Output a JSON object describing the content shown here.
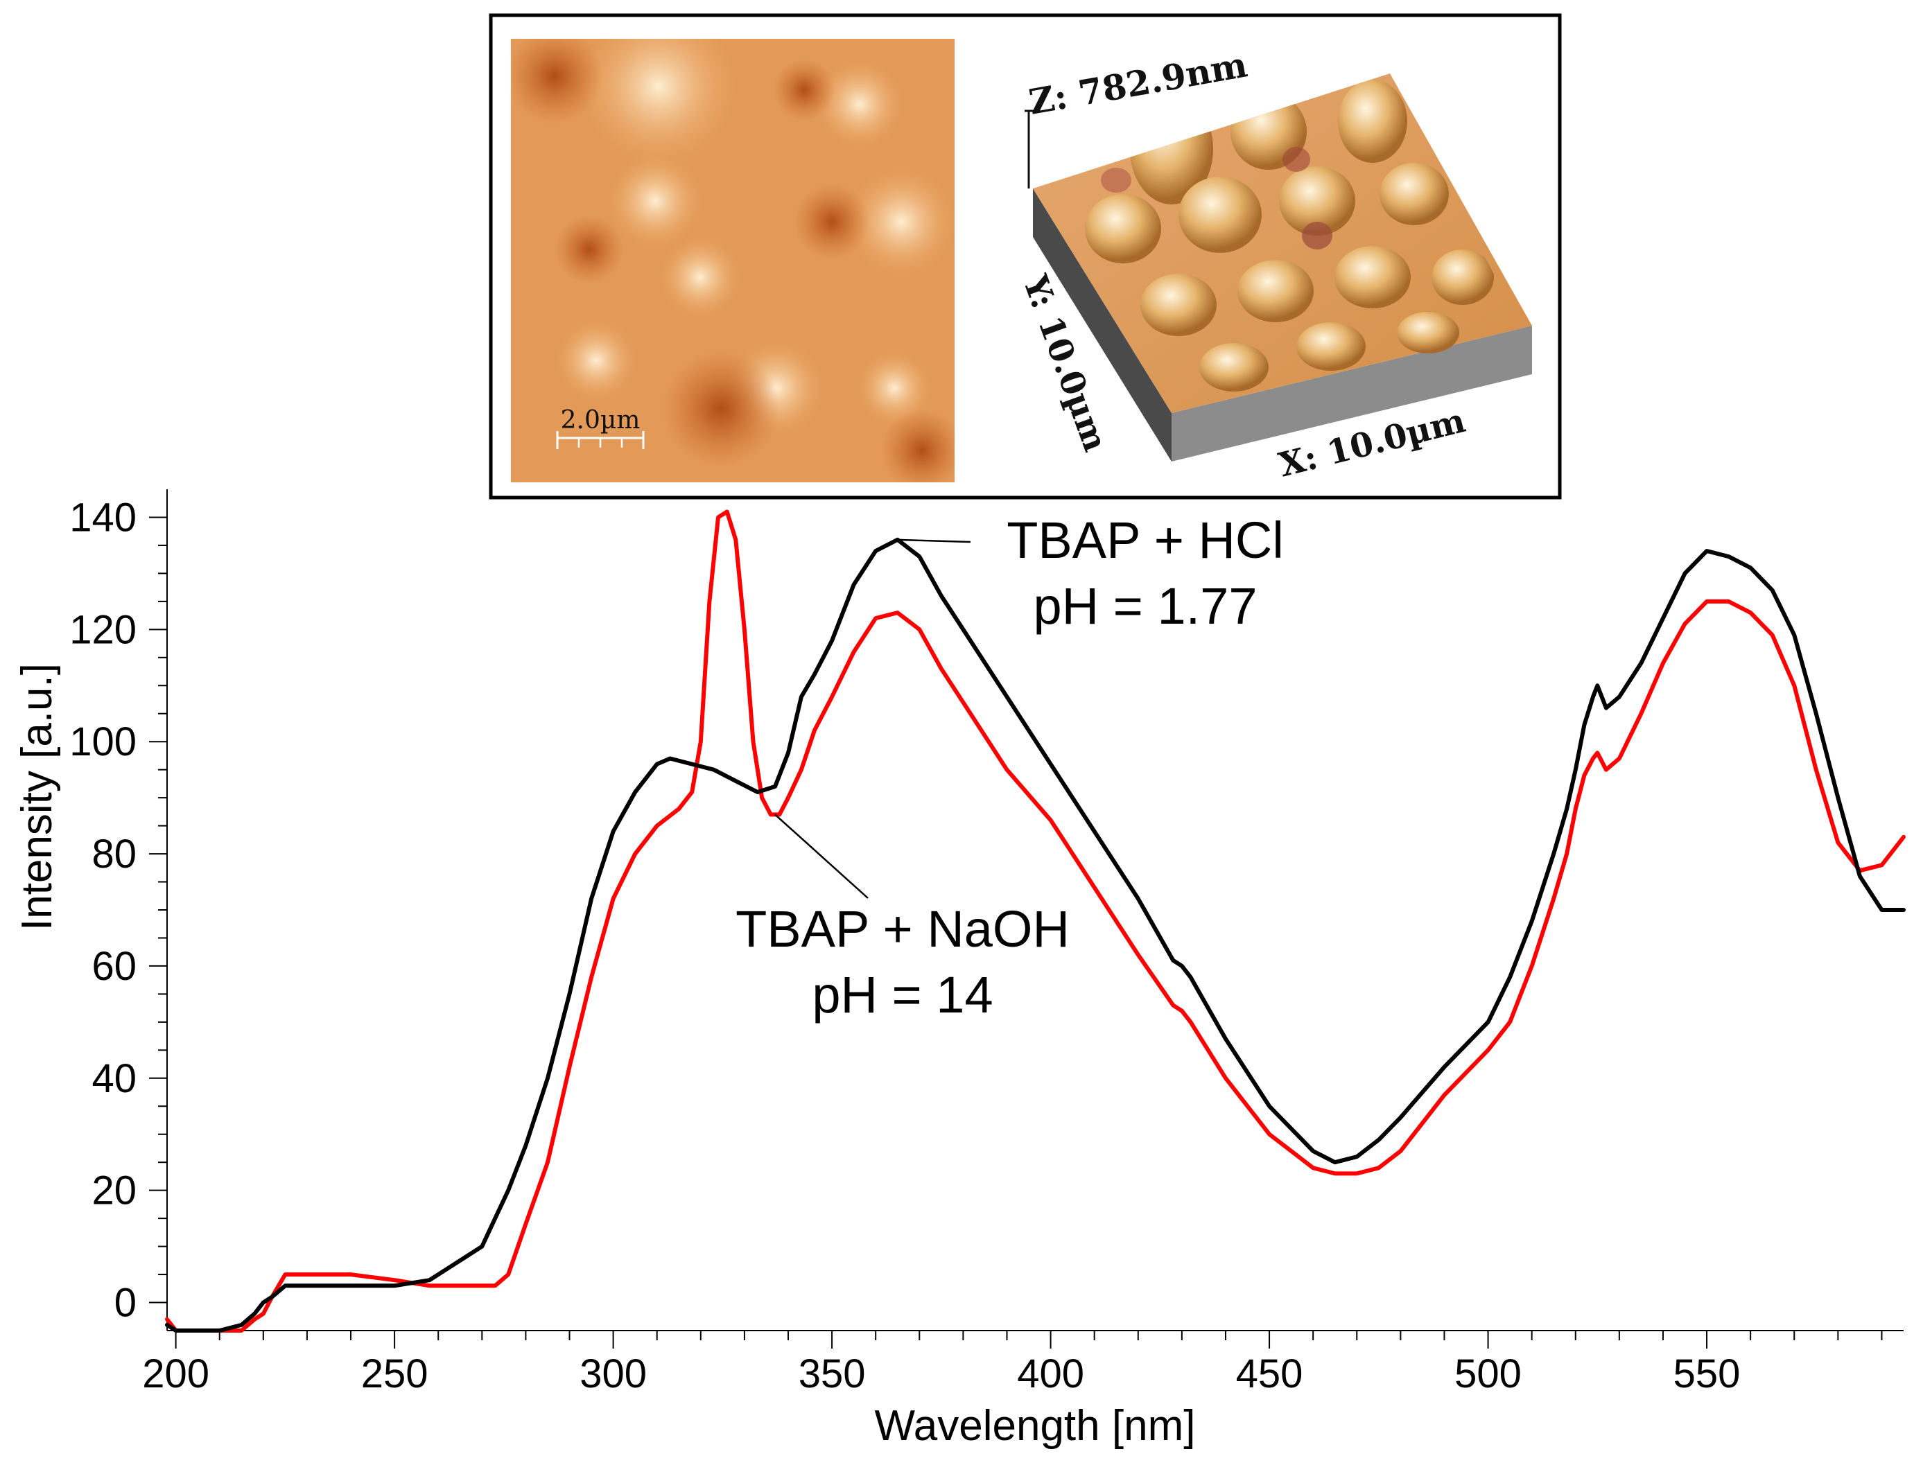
{
  "chart_data": {
    "type": "line",
    "title": "",
    "xlabel": "Wavelength [nm]",
    "ylabel": "Intensity [a.u.]",
    "xlim": [
      198,
      595
    ],
    "ylim": [
      -5,
      145
    ],
    "xticks": [
      200,
      250,
      300,
      350,
      400,
      450,
      500,
      550
    ],
    "yticks": [
      0,
      20,
      40,
      60,
      80,
      100,
      120,
      140
    ],
    "grid": false,
    "series": [
      {
        "name": "TBAP + HCl",
        "color": "#000000",
        "x": [
          198,
          200,
          205,
          210,
          215,
          218,
          220,
          222,
          225,
          230,
          240,
          250,
          258,
          262,
          266,
          270,
          273,
          276,
          280,
          285,
          290,
          295,
          300,
          305,
          310,
          313,
          318,
          323,
          328,
          333,
          337,
          340,
          343,
          346,
          350,
          355,
          360,
          365,
          370,
          375,
          380,
          390,
          400,
          410,
          420,
          428,
          430,
          432,
          440,
          450,
          460,
          465,
          470,
          475,
          480,
          490,
          500,
          505,
          510,
          515,
          518,
          520,
          522,
          524,
          525,
          527,
          530,
          535,
          540,
          545,
          550,
          555,
          560,
          565,
          570,
          575,
          580,
          585,
          590,
          595
        ],
        "y": [
          -4,
          -5,
          -5,
          -5,
          -4,
          -2,
          0,
          1,
          3,
          3,
          3,
          3,
          4,
          6,
          8,
          10,
          15,
          20,
          28,
          40,
          55,
          72,
          84,
          91,
          96,
          97,
          96,
          95,
          93,
          91,
          92,
          98,
          108,
          112,
          118,
          128,
          134,
          136,
          133,
          126,
          120,
          108,
          96,
          84,
          72,
          61,
          60,
          58,
          47,
          35,
          27,
          25,
          26,
          29,
          33,
          42,
          50,
          58,
          68,
          80,
          88,
          95,
          103,
          108,
          110,
          106,
          108,
          114,
          122,
          130,
          134,
          133,
          131,
          127,
          119,
          105,
          90,
          76,
          70,
          70
        ]
      },
      {
        "name": "TBAP + NaOH",
        "color": "#ff0000",
        "x": [
          198,
          200,
          205,
          210,
          215,
          218,
          220,
          222,
          225,
          230,
          240,
          250,
          258,
          262,
          266,
          270,
          273,
          276,
          280,
          285,
          290,
          295,
          300,
          305,
          310,
          315,
          318,
          320,
          322,
          324,
          326,
          328,
          330,
          332,
          334,
          336,
          338,
          340,
          343,
          346,
          350,
          355,
          360,
          365,
          370,
          375,
          380,
          390,
          400,
          410,
          420,
          428,
          430,
          432,
          440,
          450,
          460,
          465,
          470,
          475,
          480,
          490,
          500,
          505,
          510,
          515,
          518,
          520,
          522,
          524,
          525,
          527,
          530,
          535,
          540,
          545,
          550,
          555,
          560,
          565,
          570,
          575,
          580,
          585,
          590,
          595
        ],
        "y": [
          -3,
          -5,
          -5,
          -5,
          -5,
          -3,
          -2,
          1,
          5,
          5,
          5,
          4,
          3,
          3,
          3,
          3,
          3,
          5,
          14,
          25,
          42,
          58,
          72,
          80,
          85,
          88,
          91,
          100,
          125,
          140,
          141,
          136,
          120,
          100,
          90,
          87,
          87,
          90,
          95,
          102,
          108,
          116,
          122,
          123,
          120,
          113,
          107,
          95,
          86,
          74,
          62,
          53,
          52,
          50,
          40,
          30,
          24,
          23,
          23,
          24,
          27,
          37,
          45,
          50,
          60,
          72,
          80,
          88,
          94,
          97,
          98,
          95,
          97,
          105,
          114,
          121,
          125,
          125,
          123,
          119,
          110,
          95,
          82,
          77,
          78,
          83
        ]
      }
    ],
    "annotations": [
      {
        "target": "TBAP + HCl",
        "lines": [
          "TBAP + HCl",
          "pH = 1.77"
        ],
        "point_x": 365,
        "point_y": 136
      },
      {
        "target": "TBAP + NaOH",
        "lines": [
          "TBAP + NaOH",
          "pH = 14"
        ],
        "point_x": 337,
        "point_y": 87
      }
    ]
  },
  "inset": {
    "scale_bar_label": "2.0µm",
    "z_label": "Z: 782.9nm",
    "y_label": "Y: 10.0µm",
    "x_label": "X: 10.0µm"
  }
}
